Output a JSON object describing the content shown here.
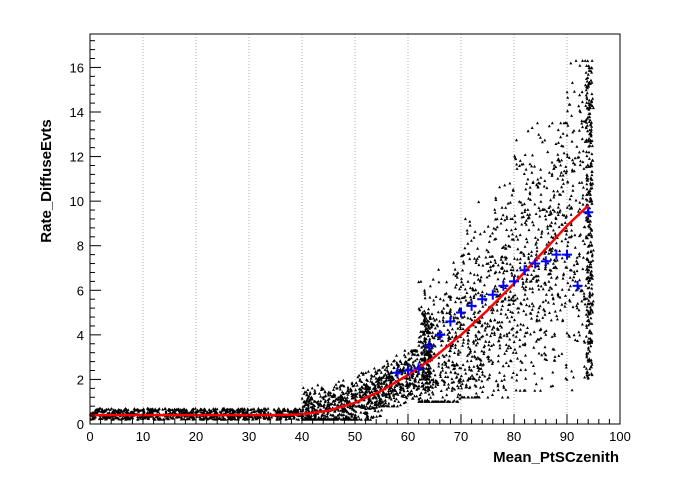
{
  "chart_data": {
    "type": "scatter",
    "title": "",
    "xlabel": "Mean_PtSCzenith",
    "ylabel": "Rate_DiffuseEvts",
    "xlim": [
      0,
      100
    ],
    "ylim": [
      0,
      17.5
    ],
    "x_ticks": [
      0,
      10,
      20,
      30,
      40,
      50,
      60,
      70,
      80,
      90,
      100
    ],
    "y_ticks": [
      0,
      2,
      4,
      6,
      8,
      10,
      12,
      14,
      16
    ],
    "grid": "vertical-dotted",
    "legend": "none",
    "colors": {
      "points": "#000000",
      "profile": "#0000ff",
      "fit": "#ff0000"
    },
    "scatter_bands": [
      {
        "x_range": [
          0,
          40
        ],
        "y_range": [
          0.2,
          0.7
        ]
      },
      {
        "x_range": [
          40,
          55
        ],
        "y_range": [
          0.2,
          2.5
        ]
      },
      {
        "x_range": [
          55,
          62
        ],
        "y_range": [
          0.8,
          3.3
        ]
      },
      {
        "x_range": [
          62,
          70
        ],
        "y_range": [
          1.0,
          8.0
        ]
      },
      {
        "x_range": [
          70,
          80
        ],
        "y_range": [
          1.2,
          10.8
        ]
      },
      {
        "x_range": [
          80,
          90
        ],
        "y_range": [
          1.5,
          13.5
        ]
      },
      {
        "x_range": [
          90,
          95
        ],
        "y_range": [
          1.5,
          16.3
        ]
      }
    ],
    "profile_points": [
      {
        "x": 58,
        "y": 2.3
      },
      {
        "x": 60,
        "y": 2.4
      },
      {
        "x": 62,
        "y": 2.5
      },
      {
        "x": 64,
        "y": 3.5
      },
      {
        "x": 66,
        "y": 4.0
      },
      {
        "x": 68,
        "y": 4.6
      },
      {
        "x": 70,
        "y": 5.0
      },
      {
        "x": 72,
        "y": 5.3
      },
      {
        "x": 74,
        "y": 5.6
      },
      {
        "x": 76,
        "y": 5.8
      },
      {
        "x": 78,
        "y": 6.2
      },
      {
        "x": 80,
        "y": 6.4
      },
      {
        "x": 82,
        "y": 6.9
      },
      {
        "x": 84,
        "y": 7.2
      },
      {
        "x": 86,
        "y": 7.3
      },
      {
        "x": 88,
        "y": 7.6
      },
      {
        "x": 90,
        "y": 7.6
      },
      {
        "x": 92,
        "y": 6.2
      },
      {
        "x": 94,
        "y": 9.5
      }
    ],
    "fit_curve": [
      {
        "x": 0,
        "y": 0.4
      },
      {
        "x": 35,
        "y": 0.4
      },
      {
        "x": 40,
        "y": 0.43
      },
      {
        "x": 45,
        "y": 0.6
      },
      {
        "x": 50,
        "y": 0.95
      },
      {
        "x": 55,
        "y": 1.5
      },
      {
        "x": 60,
        "y": 2.2
      },
      {
        "x": 65,
        "y": 3.0
      },
      {
        "x": 70,
        "y": 4.0
      },
      {
        "x": 75,
        "y": 5.1
      },
      {
        "x": 80,
        "y": 6.3
      },
      {
        "x": 85,
        "y": 7.6
      },
      {
        "x": 90,
        "y": 8.9
      },
      {
        "x": 94,
        "y": 9.8
      }
    ]
  }
}
